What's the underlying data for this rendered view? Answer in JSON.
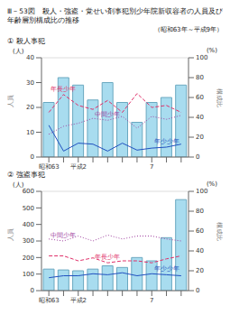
{
  "title": "Ⅲ－53図　殺人・強盗・覚せい剤事犯別少年院新収容者の人員及び年齢層別構成比の推移",
  "subtitle": "（昭和63年～平成9年）",
  "chart_data": [
    {
      "type": "bar",
      "title": "① 殺人事犯",
      "categories": [
        "昭和63",
        null,
        "平成2",
        null,
        null,
        null,
        null,
        "7",
        null,
        null
      ],
      "ylabel": "人員",
      "yunit": "(人)",
      "y2label": "構成比",
      "y2unit": "(%)",
      "values": [
        22,
        32,
        29,
        23,
        30,
        22,
        14,
        22,
        24,
        29
      ],
      "color": "#a8dcef",
      "ylim": [
        0,
        40
      ],
      "yticks": [
        0,
        10,
        20,
        30,
        40
      ],
      "y2lim": [
        0,
        100
      ],
      "y2ticks": [
        0,
        20,
        40,
        60,
        80,
        100
      ],
      "series": [
        {
          "name": "年長少年",
          "color": "#e0306a",
          "line_style": "dashed",
          "axis": "y2",
          "type": "line",
          "values": [
            45,
            63,
            52,
            48,
            57,
            45,
            64,
            50,
            52,
            45
          ]
        },
        {
          "name": "中間少年",
          "color": "#a040a0",
          "line_style": "dotted",
          "axis": "y2",
          "type": "line",
          "values": [
            23,
            31,
            34,
            39,
            37,
            41,
            29,
            41,
            38,
            42
          ]
        },
        {
          "name": "年少少年",
          "color": "#2050c0",
          "line_style": "solid",
          "axis": "y2",
          "type": "line",
          "values": [
            32,
            6,
            14,
            13,
            6,
            14,
            7,
            9,
            10,
            13
          ]
        }
      ]
    },
    {
      "type": "bar",
      "title": "② 強盗事犯",
      "categories": [
        "昭和63",
        null,
        "平成2",
        null,
        null,
        null,
        null,
        "7",
        null,
        null
      ],
      "ylabel": "人員",
      "yunit": "(人)",
      "y2label": "構成比",
      "y2unit": "(%)",
      "values": [
        130,
        125,
        120,
        130,
        150,
        140,
        200,
        180,
        320,
        550
      ],
      "color": "#a8dcef",
      "ylim": [
        0,
        600
      ],
      "yticks": [
        0,
        100,
        200,
        300,
        400,
        500,
        600
      ],
      "y2lim": [
        0,
        100
      ],
      "y2ticks": [
        0,
        20,
        40,
        60,
        80,
        100
      ],
      "series": [
        {
          "name": "中間少年",
          "color": "#a040a0",
          "line_style": "dotted",
          "axis": "y2",
          "type": "line",
          "values": [
            52,
            50,
            55,
            50,
            56,
            52,
            55,
            55,
            52,
            50
          ]
        },
        {
          "name": "年長少年",
          "color": "#e0306a",
          "line_style": "dashed",
          "axis": "y2",
          "type": "line",
          "values": [
            35,
            35,
            30,
            33,
            28,
            30,
            30,
            28,
            32,
            35
          ]
        },
        {
          "name": "年少少年",
          "color": "#2050c0",
          "line_style": "solid",
          "axis": "y2",
          "type": "line",
          "values": [
            13,
            15,
            15,
            17,
            16,
            18,
            15,
            17,
            16,
            15
          ]
        }
      ]
    }
  ]
}
